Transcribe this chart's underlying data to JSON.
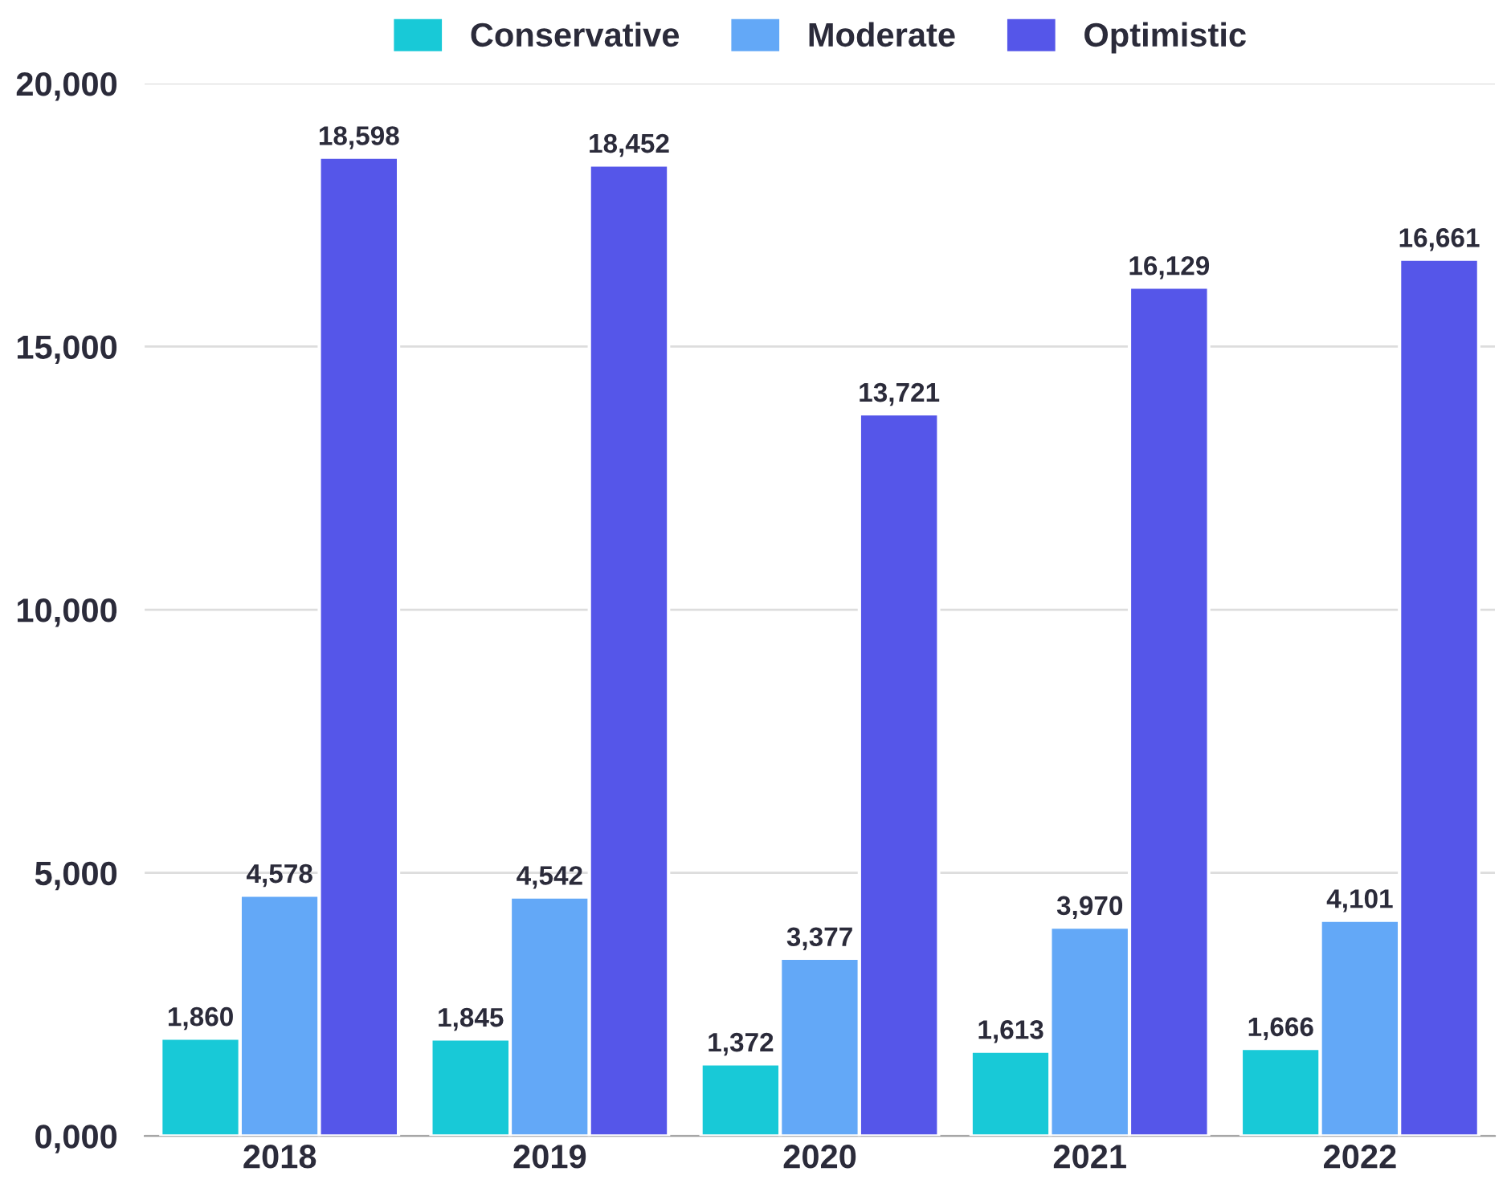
{
  "chart_data": {
    "type": "bar",
    "categories": [
      "2018",
      "2019",
      "2020",
      "2021",
      "2022"
    ],
    "series": [
      {
        "name": "Conservative",
        "color": "#18c9d7",
        "values": [
          1860,
          1845,
          1372,
          1613,
          1666
        ],
        "value_labels": [
          "1,860",
          "1,845",
          "1,372",
          "1,613",
          "1,666"
        ]
      },
      {
        "name": "Moderate",
        "color": "#63a8f7",
        "values": [
          4578,
          4542,
          3377,
          3970,
          4101
        ],
        "value_labels": [
          "4,578",
          "4,542",
          "3,377",
          "3,970",
          "4,101"
        ]
      },
      {
        "name": "Optimistic",
        "color": "#5556e9",
        "values": [
          18598,
          18452,
          13721,
          16129,
          16661
        ],
        "value_labels": [
          "18,598",
          "18,452",
          "13,721",
          "16,129",
          "16,661"
        ]
      }
    ],
    "ylim": [
      0,
      20000
    ],
    "yticks": [
      {
        "value": 0,
        "label": "0,000"
      },
      {
        "value": 5000,
        "label": "5,000"
      },
      {
        "value": 10000,
        "label": "10,000"
      },
      {
        "value": 15000,
        "label": "15,000"
      },
      {
        "value": 20000,
        "label": "20,000"
      }
    ],
    "grid": "y",
    "legend": "top"
  }
}
